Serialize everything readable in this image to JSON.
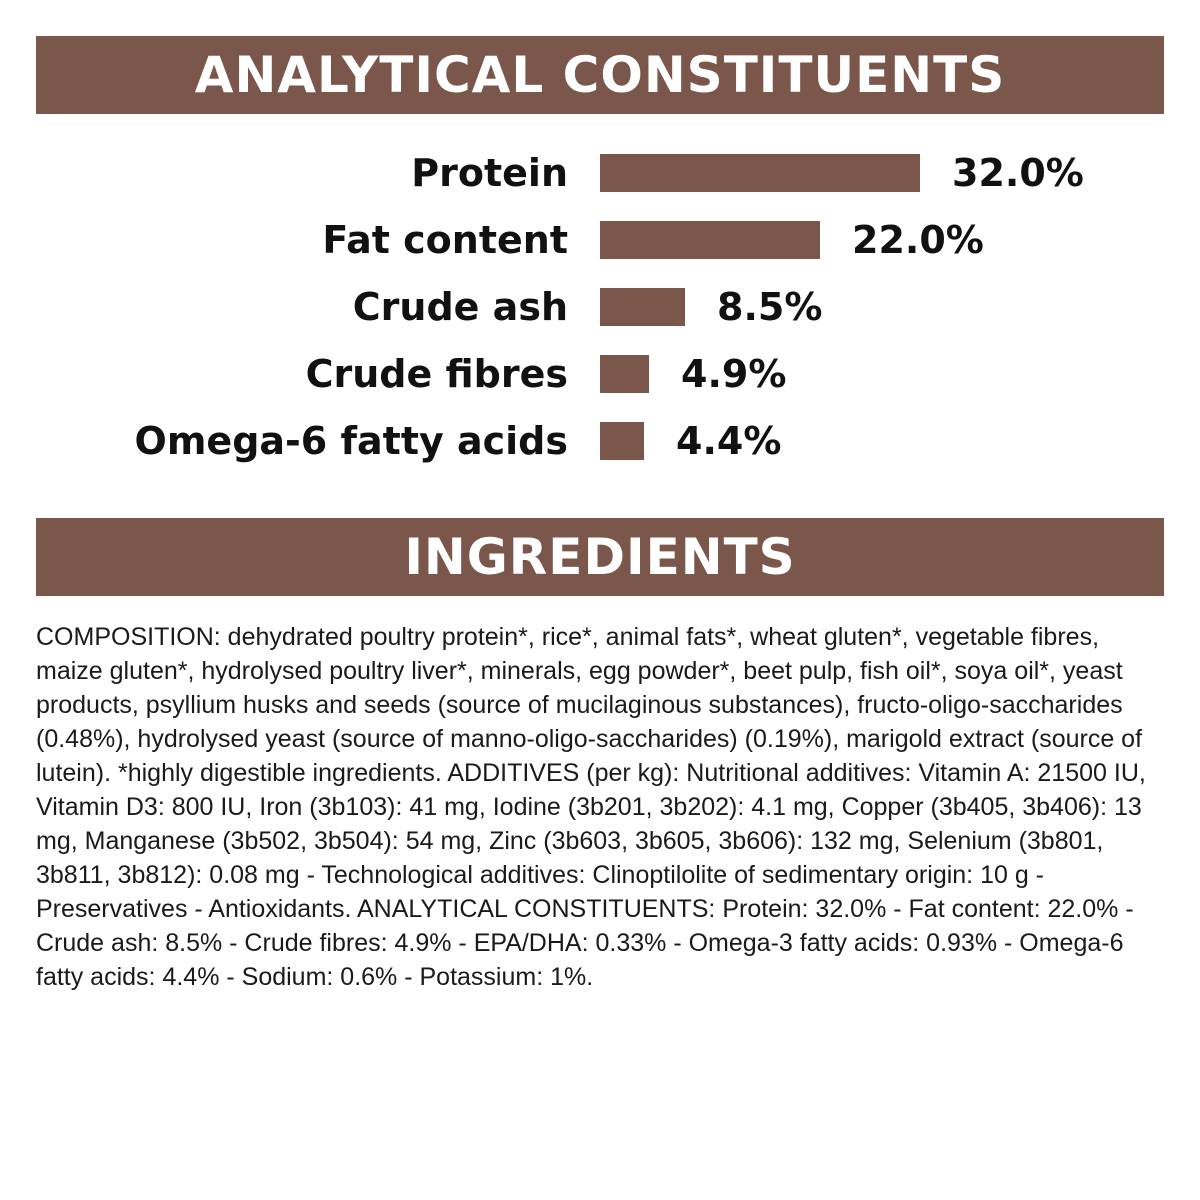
{
  "colors": {
    "banner": "#7a574a",
    "bar": "#7a574a",
    "banner_text": "#ffffff",
    "text": "#111111"
  },
  "sections": {
    "analytical_title": "ANALYTICAL CONSTITUENTS",
    "ingredients_title": "INGREDIENTS"
  },
  "chart_data": {
    "type": "bar",
    "orientation": "horizontal",
    "categories": [
      "Protein",
      "Fat content",
      "Crude ash",
      "Crude fibres",
      "Omega-6 fatty acids"
    ],
    "values": [
      32.0,
      22.0,
      8.5,
      4.9,
      4.4
    ],
    "value_labels": [
      "32.0%",
      "22.0%",
      "8.5%",
      "4.9%",
      "4.4%"
    ],
    "unit": "%",
    "grid": false,
    "legend": "none"
  },
  "ingredients": {
    "text": "COMPOSITION: dehydrated poultry protein*, rice*, animal fats*, wheat gluten*, vegetable fibres, maize gluten*, hydrolysed poultry liver*, minerals, egg powder*, beet pulp, fish oil*, soya oil*, yeast products, psyllium husks and seeds (source of mucilaginous substances), fructo-oligo-saccharides (0.48%), hydrolysed yeast (source of manno-oligo-saccharides) (0.19%), marigold extract (source of lutein). *highly digestible ingredients. ADDITIVES (per kg): Nutritional additives: Vitamin A: 21500 IU, Vitamin D3: 800 IU, Iron (3b103): 41 mg, Iodine (3b201, 3b202): 4.1 mg, Copper (3b405, 3b406): 13 mg, Manganese (3b502, 3b504): 54 mg, Zinc (3b603, 3b605, 3b606): 132 mg, Selenium (3b801, 3b811, 3b812): 0.08 mg - Technological additives: Clinoptilolite of sedimentary origin: 10 g - Preservatives - Antioxidants. ANALYTICAL CONSTITUENTS: Protein: 32.0% - Fat content: 22.0% - Crude ash: 8.5% - Crude fibres: 4.9% - EPA/DHA: 0.33% - Omega-3 fatty acids: 0.93% - Omega-6 fatty acids: 4.4% - Sodium: 0.6% - Potassium: 1%."
  }
}
